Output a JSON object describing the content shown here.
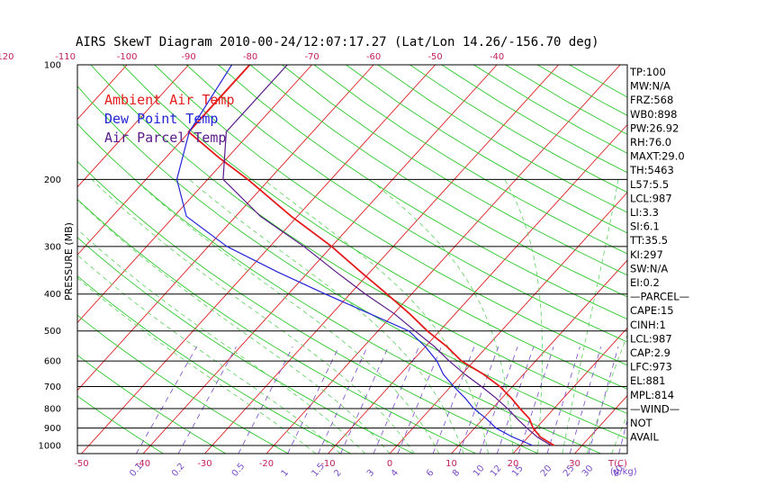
{
  "colors": {
    "ambient": "#e41c1c",
    "dewpoint": "#2424d8",
    "parcel": "#5a1a8a",
    "isotherm": "#dd2020",
    "dry_adiabat": "#2ec82e",
    "moist_adiabat": "#5ad25a",
    "mixing_ratio": "#7a4ac8",
    "axis_label": "#c41e5a"
  },
  "chart_data": {
    "type": "skew-t",
    "title": "AIRS SkewT Diagram 2010-00-24/12:07:17.27 (Lat/Lon 14.26/-156.70 deg)",
    "ylabel": "PRESSURE (MB)",
    "xlabel": "T(C)",
    "mixing_ratio_unit": "(g/kg)",
    "pressure_ticks": [
      100,
      200,
      300,
      400,
      500,
      600,
      700,
      800,
      900,
      1000
    ],
    "top_temperature_ticks": [
      -120,
      -110,
      -100,
      -90,
      -80,
      -70,
      -60,
      -50,
      -40
    ],
    "bottom_temperature_ticks": [
      -50,
      -40,
      -30,
      -20,
      -10,
      0,
      10,
      20,
      30
    ],
    "mixing_ratio_ticks": [
      "0.1",
      "0.2",
      "0.5",
      "1",
      "1.5",
      "2",
      "3",
      "4",
      "6",
      "8",
      "10",
      "12",
      "15",
      "20",
      "25",
      "30",
      "40"
    ],
    "legend": [
      "Ambient Air Temp",
      "Dew Point Temp",
      "Air Parcel Temp"
    ],
    "series": [
      {
        "name": "Ambient Air Temp",
        "points": [
          {
            "p": 100,
            "t": -80.1
          },
          {
            "p": 150,
            "t": -80.1
          },
          {
            "p": 175,
            "t": -71.5
          },
          {
            "p": 200,
            "t": -63.5
          },
          {
            "p": 250,
            "t": -51
          },
          {
            "p": 300,
            "t": -40
          },
          {
            "p": 350,
            "t": -31.5
          },
          {
            "p": 400,
            "t": -24
          },
          {
            "p": 450,
            "t": -17.5
          },
          {
            "p": 500,
            "t": -12
          },
          {
            "p": 550,
            "t": -6.5
          },
          {
            "p": 600,
            "t": -2
          },
          {
            "p": 650,
            "t": 3.5
          },
          {
            "p": 700,
            "t": 8
          },
          {
            "p": 750,
            "t": 11.5
          },
          {
            "p": 800,
            "t": 14.5
          },
          {
            "p": 850,
            "t": 17.5
          },
          {
            "p": 900,
            "t": 19.5
          },
          {
            "p": 950,
            "t": 22
          },
          {
            "p": 1000,
            "t": 25.5
          }
        ]
      },
      {
        "name": "Dew Point Temp",
        "points": [
          {
            "p": 100,
            "t": -83
          },
          {
            "p": 150,
            "t": -80
          },
          {
            "p": 200,
            "t": -75
          },
          {
            "p": 250,
            "t": -68
          },
          {
            "p": 300,
            "t": -57
          },
          {
            "p": 350,
            "t": -45
          },
          {
            "p": 400,
            "t": -34
          },
          {
            "p": 450,
            "t": -24
          },
          {
            "p": 500,
            "t": -15
          },
          {
            "p": 550,
            "t": -10
          },
          {
            "p": 600,
            "t": -6
          },
          {
            "p": 650,
            "t": -3
          },
          {
            "p": 700,
            "t": 0.5
          },
          {
            "p": 750,
            "t": 4
          },
          {
            "p": 800,
            "t": 7
          },
          {
            "p": 850,
            "t": 10.5
          },
          {
            "p": 900,
            "t": 13.5
          },
          {
            "p": 950,
            "t": 17.5
          },
          {
            "p": 1000,
            "t": 22
          }
        ]
      },
      {
        "name": "Air Parcel Temp",
        "points": [
          {
            "p": 100,
            "t": -74
          },
          {
            "p": 150,
            "t": -74
          },
          {
            "p": 200,
            "t": -67.5
          },
          {
            "p": 250,
            "t": -56
          },
          {
            "p": 300,
            "t": -44.5
          },
          {
            "p": 350,
            "t": -35.5
          },
          {
            "p": 400,
            "t": -27.5
          },
          {
            "p": 450,
            "t": -20
          },
          {
            "p": 500,
            "t": -14
          },
          {
            "p": 550,
            "t": -8.5
          },
          {
            "p": 600,
            "t": -4
          },
          {
            "p": 650,
            "t": 0.5
          },
          {
            "p": 700,
            "t": 5
          },
          {
            "p": 750,
            "t": 9
          },
          {
            "p": 800,
            "t": 12.5
          },
          {
            "p": 850,
            "t": 15.5
          },
          {
            "p": 900,
            "t": 18.5
          },
          {
            "p": 950,
            "t": 21.5
          },
          {
            "p": 1000,
            "t": 25
          }
        ]
      }
    ],
    "indices": [
      "TP:100",
      "MW:N/A",
      "FRZ:568",
      "WB0:898",
      "PW:26.92",
      "RH:76.0",
      "MAXT:29.0",
      "TH:5463",
      "L57:5.5",
      "LCL:987",
      "LI:3.3",
      "SI:6.1",
      "TT:35.5",
      "KI:297",
      "SW:N/A",
      "EI:0.2",
      "—PARCEL—",
      "CAPE:15",
      "CINH:1",
      "LCL:987",
      "CAP:2.9",
      "LFC:973",
      "EL:881",
      "MPL:814",
      "—WIND—",
      "NOT",
      "AVAIL"
    ],
    "grid": true,
    "legend_position": "top-left"
  }
}
